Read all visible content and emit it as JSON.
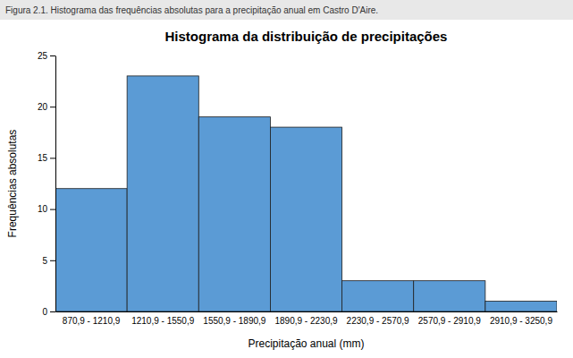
{
  "chart_data": {
    "type": "bar",
    "title": "Histograma da distribuição de precipitações",
    "caption": "Figura 2.1. Histograma das frequências absolutas para a precipitação anual em Castro D'Aire.",
    "x_label": "Precipitação anual (mm)",
    "y_label": "Frequências absolutas",
    "categories": [
      "870,9 - 1210,9",
      "1210,9 - 1550,9",
      "1550,9 - 1890,9",
      "1890,9 - 2230,9",
      "2230,9 - 2570,9",
      "2570,9 - 2910,9",
      "2910,9 - 3250,9"
    ],
    "values": [
      12,
      23,
      19,
      18,
      3,
      3,
      1
    ],
    "color": "#5B9BD5",
    "ylim": [
      0,
      25
    ],
    "yticks": [
      0,
      5,
      10,
      15,
      20,
      25
    ],
    "grid": false
  }
}
